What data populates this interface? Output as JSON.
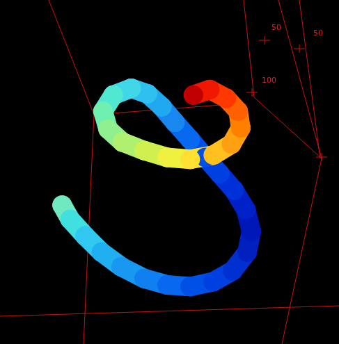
{
  "chart_data": {
    "type": "scatter",
    "x": [
      16.4,
      18.9,
      23.6,
      28.7,
      34.9,
      42.1,
      49.3,
      56.5,
      63.7,
      69.8,
      74.3,
      75.6,
      73.9,
      70.2,
      65.7,
      61.2,
      56.5,
      51.7,
      47.6,
      43.1,
      38.0,
      32.4,
      29.2,
      30.8,
      35.3,
      42.1,
      49.3,
      56.5,
      63.7,
      69.4,
      72.3,
      71.5,
      67.8,
      62.6,
      57.5
    ],
    "values": [
      39.8,
      35.4,
      30.3,
      25.3,
      20.8,
      17.2,
      15.2,
      14.7,
      16.2,
      19.6,
      25.3,
      31.7,
      38.4,
      44.4,
      49.5,
      54.5,
      60.0,
      65.3,
      70.1,
      74.1,
      75.8,
      73.7,
      68.7,
      63.2,
      59.2,
      56.6,
      54.5,
      53.9,
      55.2,
      58.6,
      63.6,
      68.7,
      72.7,
      75.4,
      73.7
    ],
    "colors": [
      "#70e8c0",
      "#40e0e0",
      "#30c8f0",
      "#20b0f0",
      "#1898f0",
      "#1080f0",
      "#0868f0",
      "#0050e8",
      "#0040e0",
      "#0030d0",
      "#0020c0",
      "#0018b8",
      "#0020c8",
      "#0030d8",
      "#0040e0",
      "#0050e8",
      "#0868f0",
      "#1888f0",
      "#20a8f0",
      "#30c0f0",
      "#40d8e8",
      "#50e8d0",
      "#70f0b0",
      "#90f090",
      "#b0f070",
      "#d0f050",
      "#f0f040",
      "#ffe030",
      "#ffc020",
      "#ffa010",
      "#ff8000",
      "#ff6000",
      "#ff3800",
      "#f01800",
      "#c00000"
    ],
    "xlim": [
      0,
      100
    ],
    "ylim": [
      0,
      100
    ],
    "tick_labels": false,
    "grid": false,
    "marker": "circle",
    "annotations": [
      "50",
      "50",
      "100"
    ]
  }
}
